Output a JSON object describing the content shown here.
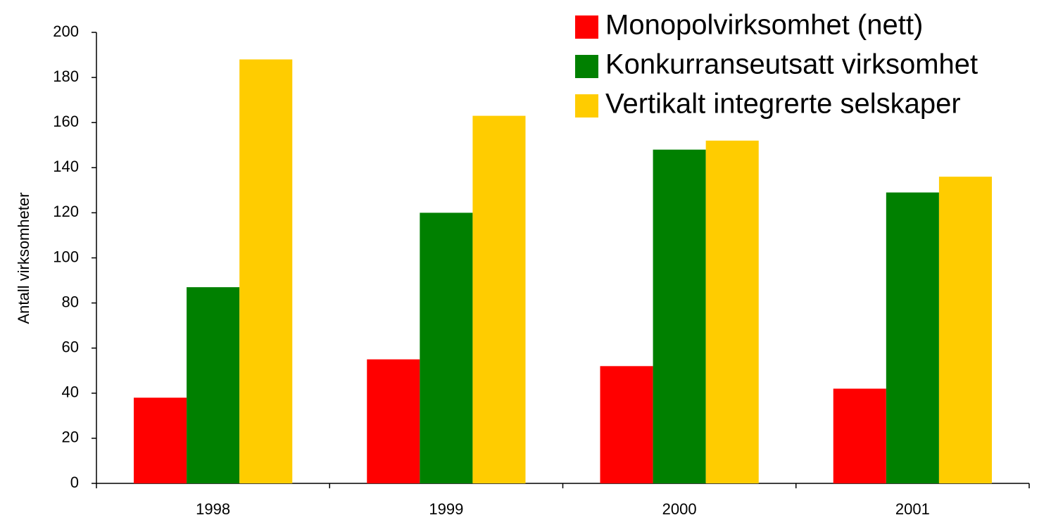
{
  "chart_data": {
    "type": "bar",
    "y_label": "Antall virksomheter",
    "categories": [
      "1998",
      "1999",
      "2000",
      "2001"
    ],
    "series": [
      {
        "name": "Monopolvirksomhet (nett)",
        "color": "#ff0000",
        "values": [
          38,
          55,
          52,
          42
        ]
      },
      {
        "name": "Konkurranseutsatt virksomhet",
        "color": "#008000",
        "values": [
          87,
          120,
          148,
          129
        ]
      },
      {
        "name": "Vertikalt integrerte selskaper",
        "color": "#ffcc00",
        "values": [
          188,
          163,
          152,
          136
        ]
      }
    ],
    "ylim": [
      0,
      200
    ],
    "yticks": [
      0,
      20,
      40,
      60,
      80,
      100,
      120,
      140,
      160,
      180,
      200
    ],
    "grid": false,
    "legend": "top-right"
  }
}
